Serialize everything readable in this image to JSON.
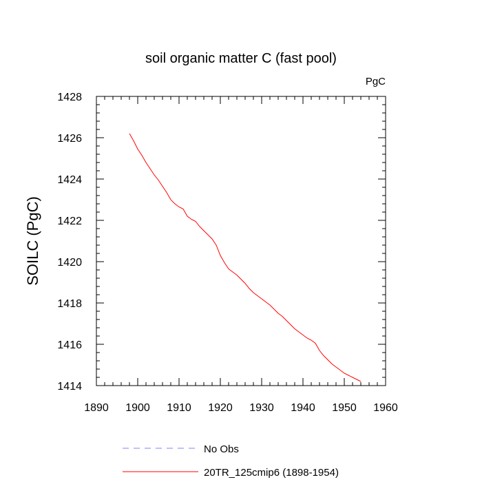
{
  "chart_data": {
    "type": "line",
    "title": "soil organic matter C (fast pool)",
    "units_label": "PgC",
    "xlabel": "",
    "ylabel": "SOILC  (PgC)",
    "xlim": [
      1890,
      1960
    ],
    "ylim": [
      1414,
      1428
    ],
    "x_ticks": [
      1890,
      1900,
      1910,
      1920,
      1930,
      1940,
      1950,
      1960
    ],
    "y_ticks": [
      1414,
      1416,
      1418,
      1420,
      1422,
      1424,
      1426,
      1428
    ],
    "grid": false,
    "legend_position": "bottom",
    "series": [
      {
        "name": "No Obs",
        "color": "#8080ff",
        "dash": "dashed",
        "x": [],
        "y": []
      },
      {
        "name": "20TR_125cmip6 (1898-1954)",
        "color": "#ff0000",
        "dash": "solid",
        "x": [
          1898,
          1899,
          1900,
          1901,
          1902,
          1903,
          1904,
          1905,
          1906,
          1907,
          1908,
          1909,
          1910,
          1911,
          1912,
          1913,
          1914,
          1915,
          1916,
          1917,
          1918,
          1919,
          1920,
          1921,
          1922,
          1923,
          1924,
          1925,
          1926,
          1927,
          1928,
          1929,
          1930,
          1931,
          1932,
          1933,
          1934,
          1935,
          1936,
          1937,
          1938,
          1939,
          1940,
          1941,
          1942,
          1943,
          1944,
          1945,
          1946,
          1947,
          1948,
          1949,
          1950,
          1951,
          1952,
          1953,
          1954
        ],
        "y": [
          1426.2,
          1425.85,
          1425.45,
          1425.15,
          1424.8,
          1424.5,
          1424.2,
          1423.95,
          1423.65,
          1423.35,
          1423.0,
          1422.8,
          1422.65,
          1422.55,
          1422.2,
          1422.05,
          1421.95,
          1421.7,
          1421.5,
          1421.3,
          1421.1,
          1420.8,
          1420.3,
          1419.95,
          1419.65,
          1419.5,
          1419.35,
          1419.15,
          1418.95,
          1418.7,
          1418.5,
          1418.35,
          1418.2,
          1418.05,
          1417.9,
          1417.7,
          1417.5,
          1417.35,
          1417.15,
          1416.95,
          1416.75,
          1416.6,
          1416.45,
          1416.3,
          1416.2,
          1416.05,
          1415.7,
          1415.45,
          1415.25,
          1415.05,
          1414.9,
          1414.75,
          1414.6,
          1414.5,
          1414.4,
          1414.3,
          1414.2
        ]
      }
    ]
  }
}
